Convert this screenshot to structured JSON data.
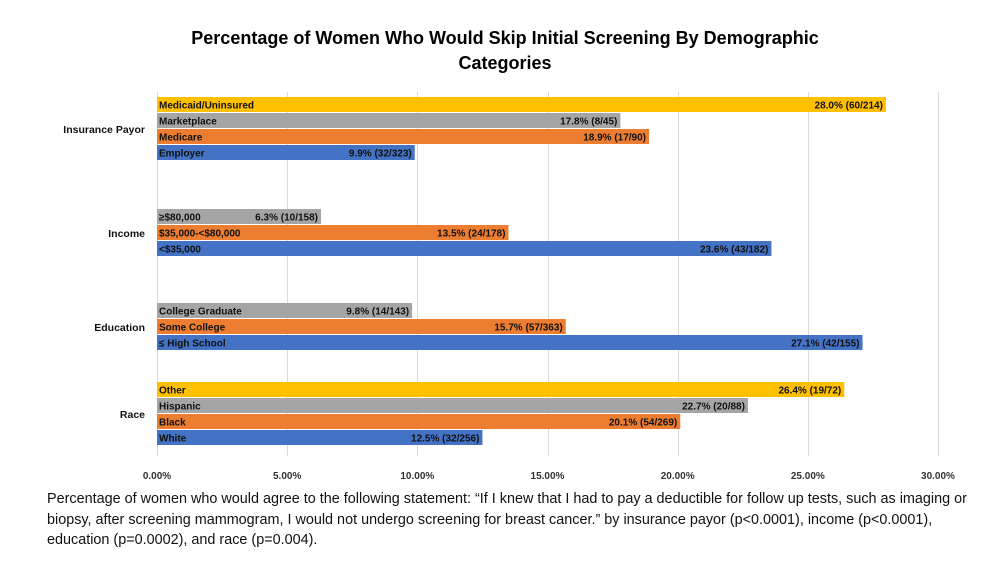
{
  "chart_data": {
    "type": "bar",
    "orientation": "horizontal",
    "title": "Percentage of Women Who Would Skip Initial Screening By Demographic Categories",
    "title_lines": [
      "Percentage of Women Who Would Skip Initial Screening By Demographic",
      "Categories"
    ],
    "xlabel": "",
    "ylabel": "",
    "xlim": [
      0,
      30
    ],
    "x_ticks": [
      0,
      5,
      10,
      15,
      20,
      25,
      30
    ],
    "x_tick_labels": [
      "0.00%",
      "5.00%",
      "10.00%",
      "15.00%",
      "20.00%",
      "25.00%",
      "30.00%"
    ],
    "grid": true,
    "legend": "none",
    "colors": {
      "blue": "#4472c4",
      "orange": "#ed7d31",
      "gray": "#a5a5a5",
      "yellow": "#ffc000"
    },
    "groups": [
      {
        "name": "Insurance Payor",
        "bars": [
          {
            "label": "Medicaid/Uninsured",
            "value": 28.0,
            "data_label": "28.0% (60/214)",
            "color": "#ffc000"
          },
          {
            "label": "Marketplace",
            "value": 17.8,
            "data_label": "17.8% (8/45)",
            "color": "#a5a5a5"
          },
          {
            "label": "Medicare",
            "value": 18.9,
            "data_label": "18.9% (17/90)",
            "color": "#ed7d31"
          },
          {
            "label": "Employer",
            "value": 9.9,
            "data_label": "9.9% (32/323)",
            "color": "#4472c4"
          }
        ]
      },
      {
        "name": "Income",
        "bars": [
          {
            "label": "≥$80,000",
            "value": 6.3,
            "data_label": "6.3% (10/158)",
            "color": "#a5a5a5"
          },
          {
            "label": "$35,000-<$80,000",
            "value": 13.5,
            "data_label": "13.5% (24/178)",
            "color": "#ed7d31"
          },
          {
            "label": "<$35,000",
            "value": 23.6,
            "data_label": "23.6% (43/182)",
            "color": "#4472c4"
          }
        ]
      },
      {
        "name": "Education",
        "bars": [
          {
            "label": "College Graduate",
            "value": 9.8,
            "data_label": "9.8% (14/143)",
            "color": "#a5a5a5"
          },
          {
            "label": "Some College",
            "value": 15.7,
            "data_label": "15.7% (57/363)",
            "color": "#ed7d31"
          },
          {
            "label": "≤ High School",
            "value": 27.1,
            "data_label": "27.1% (42/155)",
            "color": "#4472c4"
          }
        ]
      },
      {
        "name": "Race",
        "bars": [
          {
            "label": "Other",
            "value": 26.4,
            "data_label": "26.4% (19/72)",
            "color": "#ffc000"
          },
          {
            "label": "Hispanic",
            "value": 22.7,
            "data_label": "22.7% (20/88)",
            "color": "#a5a5a5"
          },
          {
            "label": "Black",
            "value": 20.1,
            "data_label": "20.1% (54/269)",
            "color": "#ed7d31"
          },
          {
            "label": "White",
            "value": 12.5,
            "data_label": "12.5% (32/256)",
            "color": "#4472c4"
          }
        ]
      }
    ]
  },
  "caption": "Percentage of women who would agree to the following statement: “If I knew that I had to pay a deductible for follow up tests, such as imaging or biopsy, after screening mammogram, I would not undergo screening for breast cancer.” by insurance payor (p<0.0001), income (p<0.0001), education (p=0.0002), and race (p=0.004)."
}
